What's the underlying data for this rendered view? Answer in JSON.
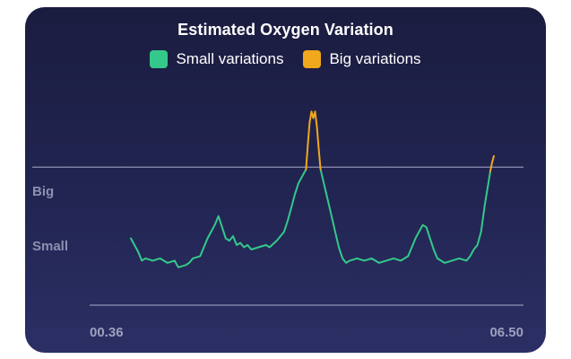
{
  "card": {
    "title": "Estimated Oxygen Variation",
    "legend": [
      {
        "label": "Small variations",
        "color": "#34c98a"
      },
      {
        "label": "Big variations",
        "color": "#f0a81d"
      }
    ]
  },
  "chart_data": {
    "type": "line",
    "title": "Estimated Oxygen Variation",
    "x_tick_labels": [
      "00.36",
      "06.50"
    ],
    "y_level_labels": [
      "Big",
      "Small"
    ],
    "threshold": 0.62,
    "ylim": [
      0,
      1
    ],
    "series": [
      {
        "name": "Small variations",
        "color": "#34c98a",
        "segments": [
          {
            "x": [
              0,
              0.02,
              0.03,
              0.04,
              0.06,
              0.08,
              0.1,
              0.12,
              0.13,
              0.15,
              0.16,
              0.17,
              0.19,
              0.2,
              0.21,
              0.23,
              0.24,
              0.25,
              0.26,
              0.27,
              0.28,
              0.29,
              0.3,
              0.31,
              0.32,
              0.33,
              0.35,
              0.37,
              0.38,
              0.4,
              0.41,
              0.42,
              0.43,
              0.44,
              0.45,
              0.46,
              0.47,
              0.48
            ],
            "y": [
              0.3,
              0.24,
              0.2,
              0.21,
              0.2,
              0.21,
              0.19,
              0.2,
              0.17,
              0.18,
              0.19,
              0.21,
              0.22,
              0.26,
              0.3,
              0.36,
              0.4,
              0.35,
              0.3,
              0.29,
              0.31,
              0.27,
              0.28,
              0.26,
              0.27,
              0.25,
              0.26,
              0.27,
              0.26,
              0.29,
              0.31,
              0.33,
              0.38,
              0.44,
              0.5,
              0.55,
              0.58,
              0.61
            ]
          },
          {
            "x": [
              0.52,
              0.53,
              0.54,
              0.55,
              0.56,
              0.57,
              0.58,
              0.59,
              0.6,
              0.62,
              0.64,
              0.66,
              0.68,
              0.7,
              0.72,
              0.74,
              0.76,
              0.77,
              0.78,
              0.79,
              0.8,
              0.81,
              0.82,
              0.83,
              0.84,
              0.86,
              0.88,
              0.9,
              0.92,
              0.93,
              0.94,
              0.95,
              0.96,
              0.97,
              0.98,
              0.985
            ],
            "y": [
              0.61,
              0.54,
              0.47,
              0.4,
              0.33,
              0.26,
              0.21,
              0.19,
              0.2,
              0.21,
              0.2,
              0.21,
              0.19,
              0.2,
              0.21,
              0.2,
              0.22,
              0.26,
              0.3,
              0.33,
              0.36,
              0.35,
              0.3,
              0.25,
              0.21,
              0.19,
              0.2,
              0.21,
              0.2,
              0.22,
              0.25,
              0.27,
              0.33,
              0.45,
              0.55,
              0.6
            ]
          }
        ]
      },
      {
        "name": "Big variations",
        "color": "#f0a81d",
        "segments": [
          {
            "x": [
              0.48,
              0.485,
              0.49,
              0.495,
              0.5,
              0.505,
              0.51,
              0.515,
              0.52
            ],
            "y": [
              0.61,
              0.72,
              0.82,
              0.87,
              0.84,
              0.87,
              0.8,
              0.7,
              0.61
            ]
          },
          {
            "x": [
              0.985,
              0.99,
              0.995
            ],
            "y": [
              0.6,
              0.64,
              0.67
            ]
          }
        ]
      }
    ]
  }
}
